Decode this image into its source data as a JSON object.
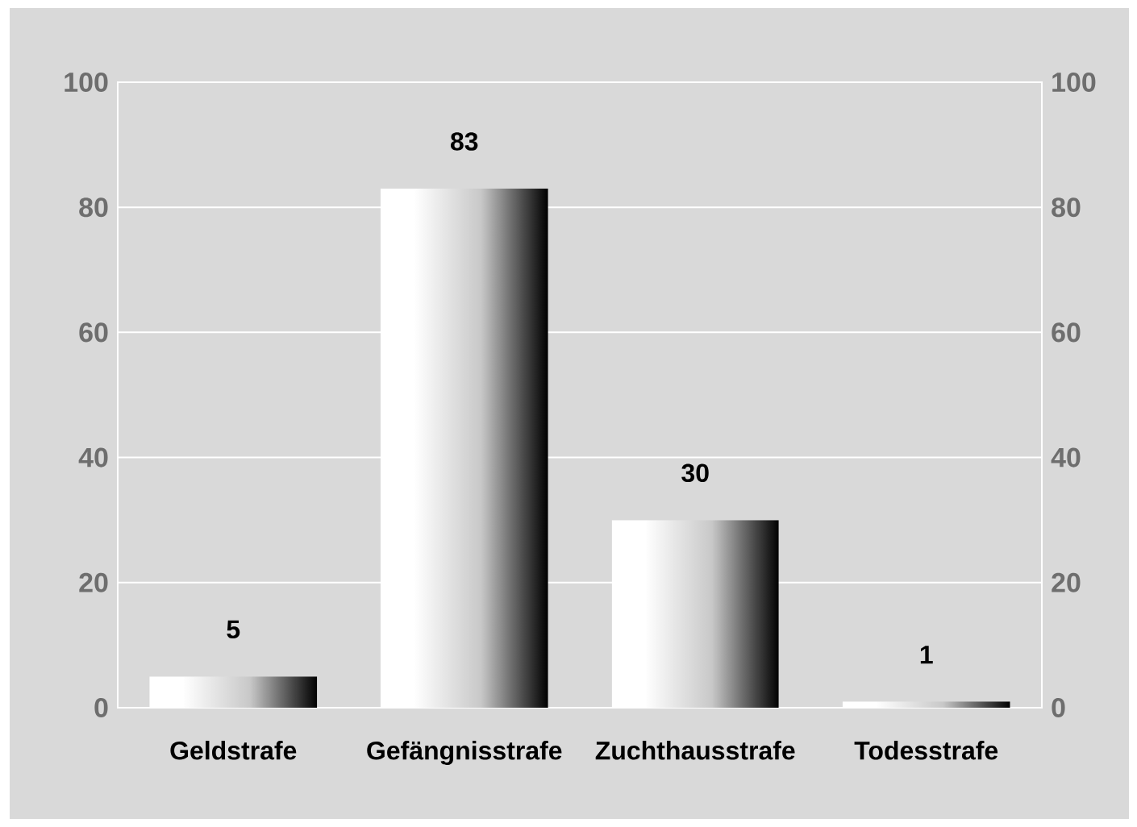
{
  "chart_data": {
    "type": "bar",
    "categories": [
      "Geldstrafe",
      "Gefängnisstrafe",
      "Zuchthausstrafe",
      "Todesstrafe"
    ],
    "values": [
      5,
      83,
      30,
      1
    ],
    "color": "#c8c8c8",
    "ylim": [
      0,
      100
    ],
    "yticks": [
      0,
      20,
      40,
      60,
      80,
      100
    ],
    "y2lim": [
      0,
      100
    ],
    "y2ticks": [
      0,
      20,
      40,
      60,
      80,
      100
    ],
    "grid": "y",
    "data_labels": true
  }
}
